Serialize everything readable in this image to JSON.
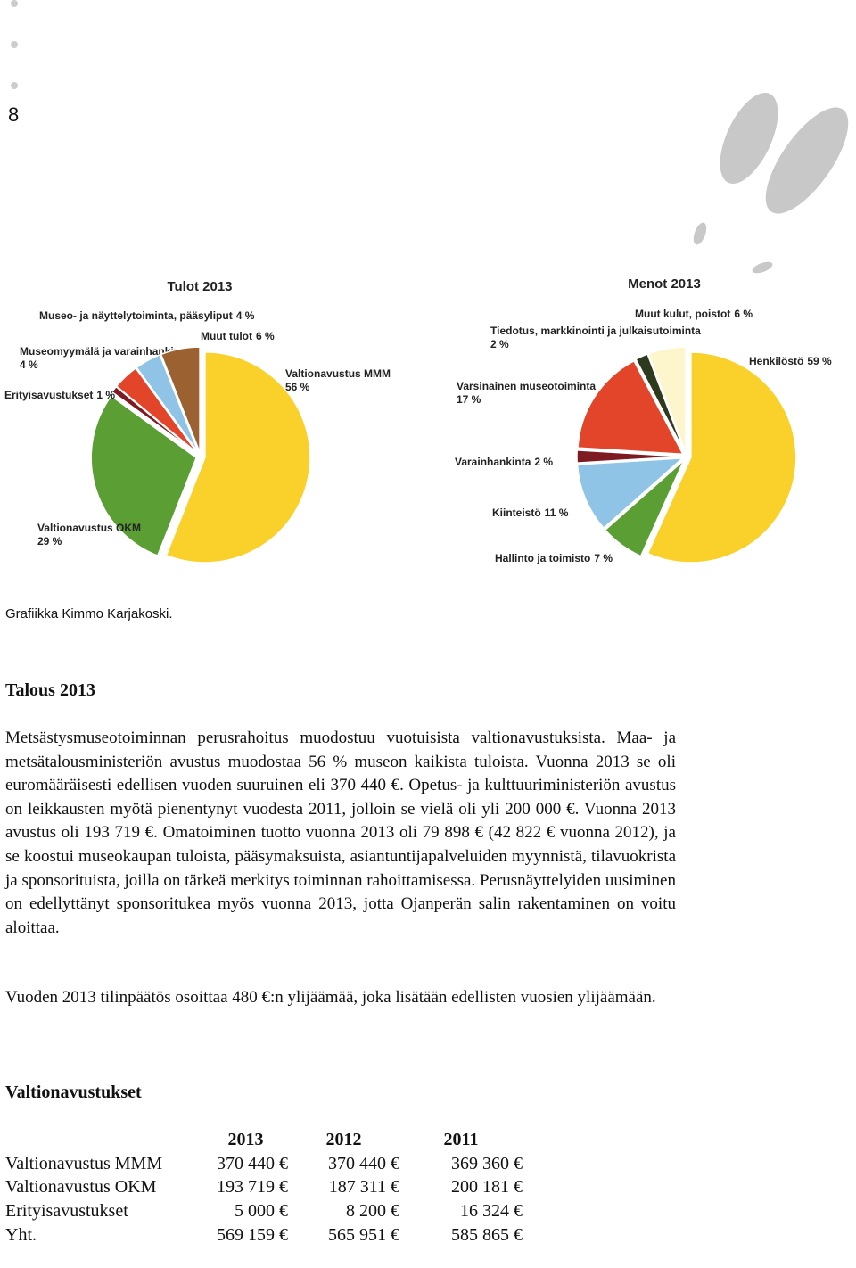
{
  "page_number": "8",
  "chart_data": [
    {
      "type": "pie",
      "title": "Tulot 2013",
      "categories": [
        "Valtionavustus MMM",
        "Valtionavustus OKM",
        "Erityisavustukset",
        "Museomyymälä ja varainhankinta",
        "Museo- ja näyttelytoiminta, pääsyliput",
        "Muut tulot"
      ],
      "values": [
        56,
        29,
        1,
        4,
        4,
        6
      ],
      "value_labels": [
        "56 %",
        "29 %",
        "1 %",
        "4 %",
        "4 %",
        "6 %"
      ],
      "colors": [
        "#f9d12a",
        "#5a9e34",
        "#7e1a22",
        "#e2452a",
        "#8fc4e6",
        "#9b6130"
      ]
    },
    {
      "type": "pie",
      "title": "Menot 2013",
      "categories": [
        "Henkilöstö",
        "Hallinto ja toimisto",
        "Kiinteistö",
        "Varainhankinta",
        "Varsinainen museotoiminta",
        "Tiedotus, markkinointi ja julkaisutoiminta",
        "Muut kulut, poistot"
      ],
      "values": [
        59,
        7,
        11,
        2,
        17,
        2,
        6
      ],
      "value_labels": [
        "59 %",
        "7 %",
        "11 %",
        "2 %",
        "17 %",
        "2 %",
        "6 %"
      ],
      "colors": [
        "#f9d12a",
        "#5a9e34",
        "#8fc4e6",
        "#7e1a22",
        "#e2452a",
        "#2d3a1e",
        "#fdf6cc"
      ]
    }
  ],
  "caption": "Grafiikka Kimmo Karjakoski.",
  "section1": {
    "heading": "Talous 2013",
    "paragraphs": [
      "Metsästysmuseotoiminnan perusrahoitus muodostuu vuotuisista valtionavustuksista. Maa- ja metsätalousministeriön avustus muodostaa 56 % museon kaikista tuloista. Vuonna 2013 se oli euromääräisesti edellisen vuoden suuruinen eli 370 440 €. Opetus- ja kulttuuriministeriön avustus on leikkausten myötä pienentynyt vuodesta 2011, jolloin se vielä oli yli 200 000 €. Vuonna 2013 avustus oli 193 719 €. Omatoiminen tuotto vuonna 2013 oli 79 898 € (42 822 € vuonna 2012), ja se koostui museokaupan tuloista, pääsymaksuista, asiantuntijapalveluiden myynnistä, tilavuokrista ja sponsorituista, joilla on tärkeä merkitys toiminnan rahoittamisessa. Perusnäyttelyiden uusiminen on edellyttänyt sponsoritukea myös vuonna 2013, jotta Ojanperän salin rakentaminen on voitu aloittaa.",
      "Vuoden 2013 tilinpäätös osoittaa 480 €:n ylijäämää, joka lisätään edellisten vuosien ylijäämään."
    ]
  },
  "section2": {
    "heading": "Valtionavustukset",
    "table": {
      "header": [
        "2013",
        "2012",
        "2011"
      ],
      "rows": [
        [
          "Valtionavustus MMM",
          "370 440 €",
          "370 440 €",
          "369 360 €"
        ],
        [
          "Valtionavustus OKM",
          "193 719 €",
          "187 311 €",
          "200 181 €"
        ],
        [
          "Erityisavustukset",
          "5 000 €",
          "8 200 €",
          "16 324 €"
        ],
        [
          "Yht.",
          "569 159 €",
          "565 951 €",
          "585 865 €"
        ]
      ]
    }
  }
}
